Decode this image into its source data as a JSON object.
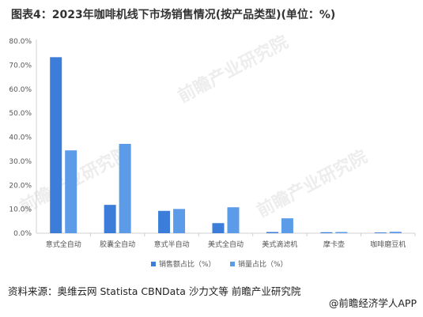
{
  "title": "图表4：2023年咖啡机线下市场销售情况(按产品类型)(单位：%)",
  "source": "资料来源：奥维云网 Statista CBNData 沙力文等 前瞻产业研究院",
  "logo_text": "@前瞻经济学人APP",
  "watermark_text": "前瞻产业研究院",
  "colors": {
    "series1": "#3B7DD8",
    "series2": "#5B9BE8",
    "axis": "#d0d0d0",
    "grid": "#e6e6e6"
  },
  "chart_data": {
    "type": "bar",
    "categories": [
      "意式全自动",
      "胶囊全自动",
      "意式半自动",
      "美式全自动",
      "美式滴滤机",
      "摩卡壶",
      "咖啡磨豆机"
    ],
    "series": [
      {
        "name": "销售额占比（%）",
        "values": [
          73.3,
          11.8,
          9.3,
          4.2,
          0.5,
          0.4,
          0.3
        ]
      },
      {
        "name": "销量占比（%）",
        "values": [
          34.5,
          37.2,
          10.1,
          10.8,
          6.2,
          0.5,
          0.6
        ]
      }
    ],
    "yticks": [
      "0.0%",
      "10.0%",
      "20.0%",
      "30.0%",
      "40.0%",
      "50.0%",
      "60.0%",
      "70.0%",
      "80.0%"
    ],
    "ylim": [
      0,
      80
    ],
    "grid": false,
    "legend": "bottom-center"
  }
}
